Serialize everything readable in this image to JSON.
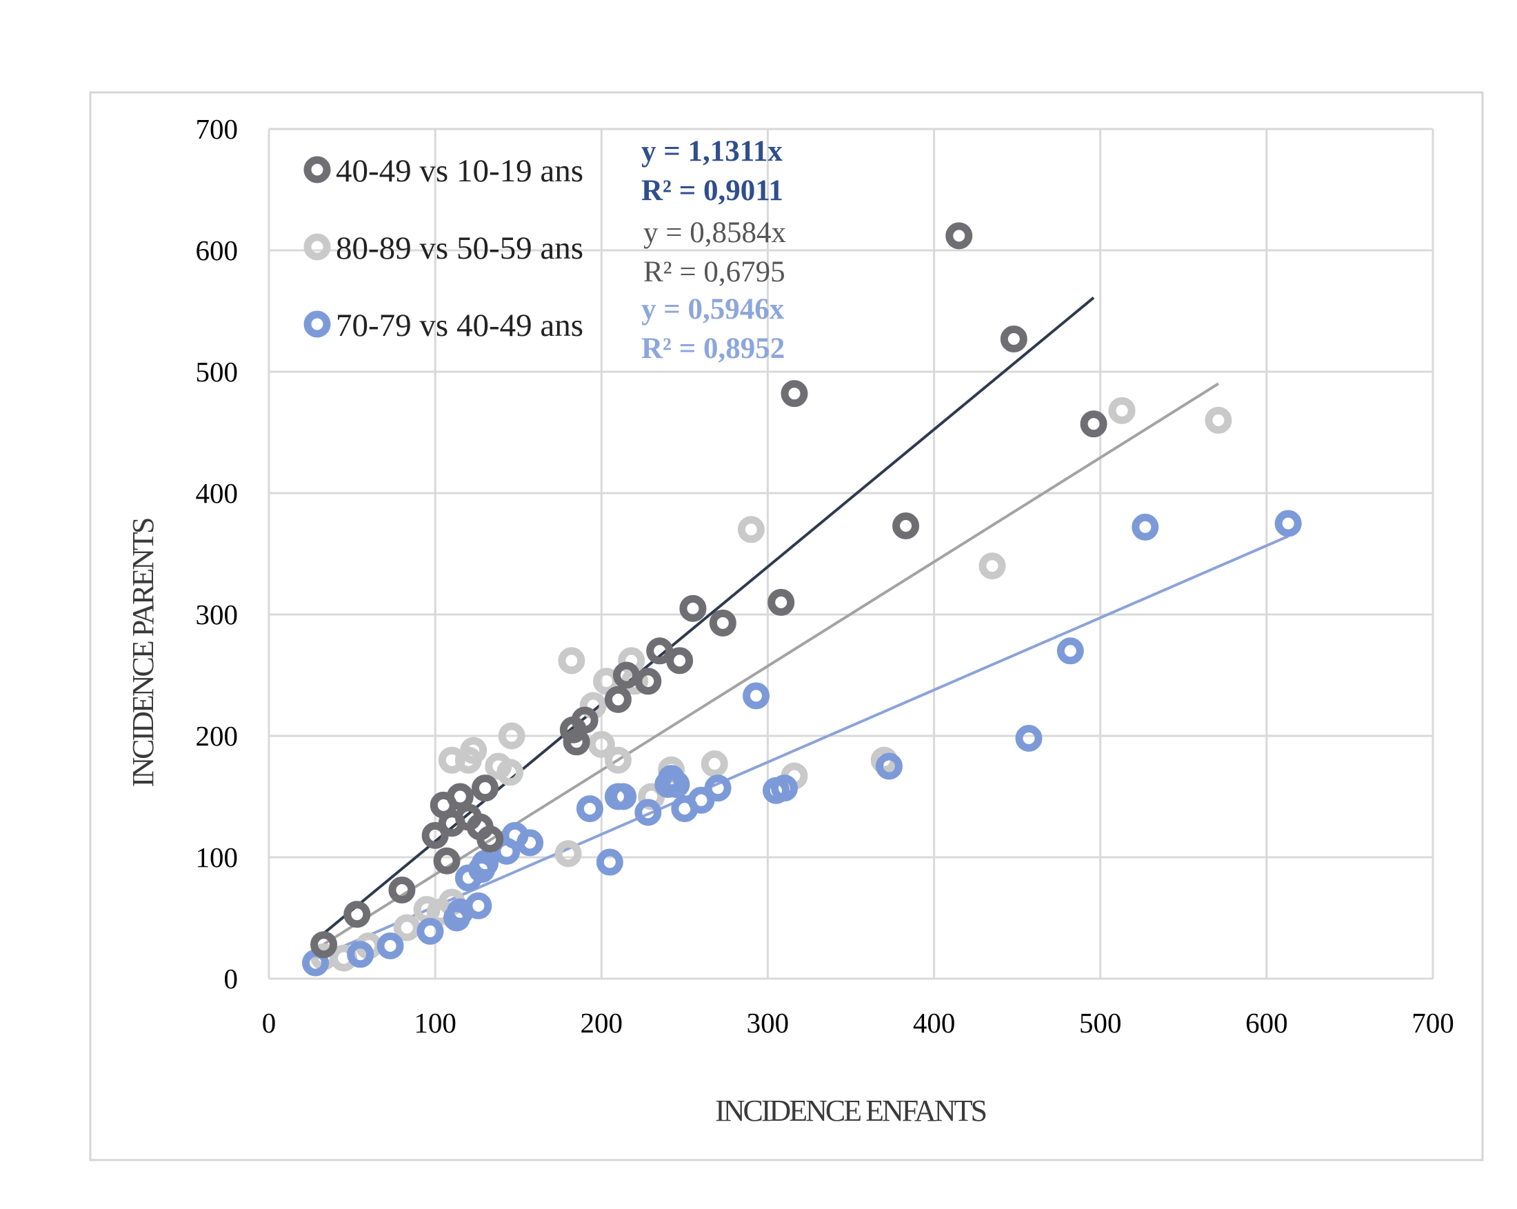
{
  "chart_data": {
    "type": "scatter",
    "xlabel": "INCIDENCE ENFANTS",
    "ylabel": "INCIDENCE PARENTS",
    "xlim": [
      0,
      700
    ],
    "ylim": [
      0,
      700
    ],
    "x_ticks": [
      "0",
      "100",
      "200",
      "300",
      "400",
      "500",
      "600",
      "700"
    ],
    "y_ticks": [
      "0",
      "100",
      "200",
      "300",
      "400",
      "500",
      "600",
      "700"
    ],
    "grid": true,
    "legend_position": "top-left",
    "series": [
      {
        "name": "40-49 vs 10-19 ans",
        "color": "#6e6e73",
        "trend_color": "#2f3a4f",
        "equation": "y = 1,1311x",
        "r2": "R² = 0,9011",
        "slope": 1.1311,
        "trend_x": [
          33,
          496
        ],
        "points": [
          [
            33,
            28
          ],
          [
            53,
            53
          ],
          [
            80,
            73
          ],
          [
            100,
            118
          ],
          [
            105,
            143
          ],
          [
            107,
            97
          ],
          [
            110,
            128
          ],
          [
            115,
            150
          ],
          [
            120,
            133
          ],
          [
            127,
            125
          ],
          [
            130,
            157
          ],
          [
            133,
            115
          ],
          [
            183,
            205
          ],
          [
            185,
            195
          ],
          [
            190,
            213
          ],
          [
            210,
            230
          ],
          [
            215,
            250
          ],
          [
            228,
            245
          ],
          [
            235,
            270
          ],
          [
            247,
            262
          ],
          [
            255,
            305
          ],
          [
            273,
            293
          ],
          [
            308,
            310
          ],
          [
            316,
            482
          ],
          [
            383,
            373
          ],
          [
            415,
            612
          ],
          [
            448,
            527
          ],
          [
            496,
            457
          ]
        ]
      },
      {
        "name": "80-89 vs 50-59 ans",
        "color": "#c9c9c9",
        "trend_color": "#a3a3a3",
        "equation": "y = 0,8584x",
        "r2": "R² = 0,6795",
        "slope": 0.8584,
        "trend_x": [
          33,
          571
        ],
        "points": [
          [
            33,
            18
          ],
          [
            45,
            17
          ],
          [
            60,
            27
          ],
          [
            83,
            42
          ],
          [
            95,
            57
          ],
          [
            103,
            55
          ],
          [
            110,
            63
          ],
          [
            110,
            180
          ],
          [
            120,
            180
          ],
          [
            123,
            188
          ],
          [
            138,
            175
          ],
          [
            145,
            170
          ],
          [
            146,
            200
          ],
          [
            180,
            103
          ],
          [
            182,
            262
          ],
          [
            195,
            225
          ],
          [
            200,
            193
          ],
          [
            203,
            245
          ],
          [
            210,
            180
          ],
          [
            218,
            262
          ],
          [
            220,
            245
          ],
          [
            230,
            150
          ],
          [
            242,
            172
          ],
          [
            245,
            160
          ],
          [
            268,
            177
          ],
          [
            290,
            370
          ],
          [
            316,
            167
          ],
          [
            370,
            180
          ],
          [
            435,
            340
          ],
          [
            513,
            468
          ],
          [
            571,
            460
          ]
        ]
      },
      {
        "name": "70-79 vs 40-49 ans",
        "color": "#7d9ad8",
        "trend_color": "#8ba3d6",
        "equation": "y = 0,5946x",
        "r2": "R² = 0,8952",
        "slope": 0.5946,
        "trend_x": [
          28,
          613
        ],
        "points": [
          [
            28,
            13
          ],
          [
            55,
            20
          ],
          [
            73,
            27
          ],
          [
            97,
            39
          ],
          [
            113,
            50
          ],
          [
            115,
            55
          ],
          [
            120,
            83
          ],
          [
            126,
            60
          ],
          [
            128,
            90
          ],
          [
            130,
            95
          ],
          [
            143,
            105
          ],
          [
            148,
            118
          ],
          [
            157,
            112
          ],
          [
            193,
            140
          ],
          [
            205,
            96
          ],
          [
            210,
            150
          ],
          [
            213,
            150
          ],
          [
            228,
            137
          ],
          [
            240,
            160
          ],
          [
            242,
            165
          ],
          [
            245,
            160
          ],
          [
            250,
            140
          ],
          [
            260,
            147
          ],
          [
            270,
            157
          ],
          [
            293,
            233
          ],
          [
            305,
            155
          ],
          [
            310,
            157
          ],
          [
            373,
            175
          ],
          [
            457,
            198
          ],
          [
            482,
            270
          ],
          [
            527,
            372
          ],
          [
            613,
            375
          ]
        ]
      }
    ]
  }
}
